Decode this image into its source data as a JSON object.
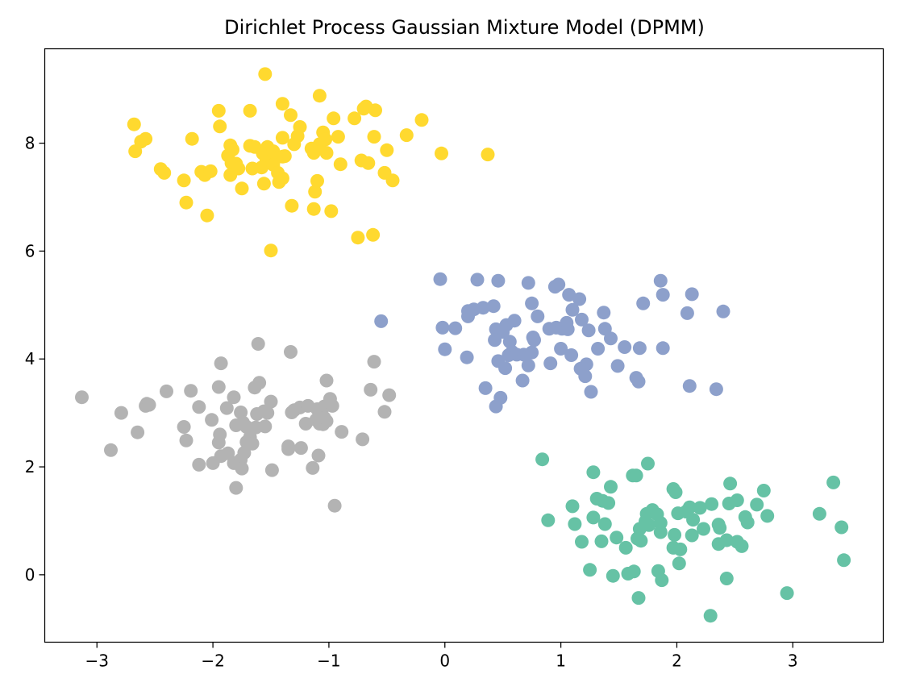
{
  "chart_data": {
    "type": "scatter",
    "title": "Dirichlet Process Gaussian Mixture Model (DPMM)",
    "xlabel": "",
    "ylabel": "",
    "xlim": [
      -3.45,
      3.78
    ],
    "ylim": [
      -1.25,
      9.75
    ],
    "xticks": [
      -3,
      -2,
      -1,
      0,
      1,
      2,
      3
    ],
    "yticks": [
      0,
      2,
      4,
      6,
      8
    ],
    "grid": false,
    "legend": "none",
    "colors": {
      "cluster_yellow": "#ffd92f",
      "cluster_blue": "#8da0cb",
      "cluster_gray": "#b3b3b3",
      "cluster_green": "#66c2a5"
    },
    "series": [
      {
        "color_key": "cluster_yellow",
        "points": [
          [
            -1.55,
            9.28
          ],
          [
            -2.68,
            8.35
          ],
          [
            -2.62,
            8.03
          ],
          [
            -2.58,
            8.08
          ],
          [
            -2.67,
            7.85
          ],
          [
            -1.95,
            8.6
          ],
          [
            -1.68,
            8.6
          ],
          [
            -1.4,
            8.73
          ],
          [
            -1.33,
            8.52
          ],
          [
            -1.08,
            8.88
          ],
          [
            -0.96,
            8.46
          ],
          [
            -0.78,
            8.46
          ],
          [
            -0.7,
            8.64
          ],
          [
            -0.68,
            8.68
          ],
          [
            -0.6,
            8.61
          ],
          [
            -0.2,
            8.43
          ],
          [
            -0.33,
            8.15
          ],
          [
            -1.94,
            8.31
          ],
          [
            -2.18,
            8.08
          ],
          [
            -1.85,
            7.96
          ],
          [
            -1.83,
            7.88
          ],
          [
            -1.87,
            7.77
          ],
          [
            -1.84,
            7.63
          ],
          [
            -1.8,
            7.62
          ],
          [
            -1.68,
            7.95
          ],
          [
            -1.64,
            7.93
          ],
          [
            -1.53,
            7.93
          ],
          [
            -1.57,
            7.81
          ],
          [
            -1.48,
            7.85
          ],
          [
            -1.4,
            7.75
          ],
          [
            -1.38,
            7.76
          ],
          [
            -1.46,
            7.72
          ],
          [
            -1.54,
            7.65
          ],
          [
            -1.58,
            7.55
          ],
          [
            -1.48,
            7.6
          ],
          [
            -1.44,
            7.45
          ],
          [
            -1.4,
            7.35
          ],
          [
            -1.43,
            7.28
          ],
          [
            -1.56,
            7.25
          ],
          [
            -1.78,
            7.53
          ],
          [
            -1.66,
            7.53
          ],
          [
            -1.75,
            7.16
          ],
          [
            -1.85,
            7.41
          ],
          [
            -1.4,
            8.1
          ],
          [
            -1.25,
            8.3
          ],
          [
            -1.27,
            8.13
          ],
          [
            -1.3,
            7.98
          ],
          [
            -1.15,
            7.9
          ],
          [
            -1.13,
            7.82
          ],
          [
            -1.08,
            7.98
          ],
          [
            -1.05,
            8.2
          ],
          [
            -1.03,
            8.07
          ],
          [
            -0.92,
            8.12
          ],
          [
            -1.02,
            7.82
          ],
          [
            -0.9,
            7.61
          ],
          [
            -0.72,
            7.68
          ],
          [
            -0.66,
            7.63
          ],
          [
            -0.61,
            8.12
          ],
          [
            -0.5,
            7.87
          ],
          [
            -0.52,
            7.45
          ],
          [
            -0.45,
            7.31
          ],
          [
            -1.1,
            7.3
          ],
          [
            -1.12,
            7.1
          ],
          [
            -1.32,
            6.84
          ],
          [
            -1.13,
            6.78
          ],
          [
            -0.98,
            6.74
          ],
          [
            -0.75,
            6.25
          ],
          [
            -0.62,
            6.3
          ],
          [
            -2.45,
            7.52
          ],
          [
            -2.42,
            7.45
          ],
          [
            -2.25,
            7.31
          ],
          [
            -2.1,
            7.47
          ],
          [
            -2.07,
            7.41
          ],
          [
            -2.02,
            7.48
          ],
          [
            -2.23,
            6.9
          ],
          [
            -2.05,
            6.66
          ],
          [
            -1.5,
            6.01
          ],
          [
            -0.03,
            7.81
          ],
          [
            0.37,
            7.79
          ]
        ]
      },
      {
        "color_key": "cluster_blue",
        "points": [
          [
            -0.04,
            5.48
          ],
          [
            0.28,
            5.47
          ],
          [
            0.46,
            5.45
          ],
          [
            0.72,
            5.41
          ],
          [
            0.95,
            5.34
          ],
          [
            0.98,
            5.38
          ],
          [
            1.07,
            5.19
          ],
          [
            1.16,
            5.11
          ],
          [
            1.86,
            5.45
          ],
          [
            1.88,
            5.19
          ],
          [
            2.13,
            5.2
          ],
          [
            0.75,
            5.03
          ],
          [
            1.71,
            5.03
          ],
          [
            2.09,
            4.85
          ],
          [
            2.4,
            4.88
          ],
          [
            0.25,
            4.92
          ],
          [
            0.33,
            4.95
          ],
          [
            0.2,
            4.89
          ],
          [
            0.2,
            4.79
          ],
          [
            0.42,
            4.98
          ],
          [
            0.8,
            4.79
          ],
          [
            1.1,
            4.91
          ],
          [
            1.37,
            4.86
          ],
          [
            0.44,
            4.55
          ],
          [
            0.53,
            4.63
          ],
          [
            0.6,
            4.71
          ],
          [
            0.5,
            4.5
          ],
          [
            0.43,
            4.35
          ],
          [
            0.56,
            4.32
          ],
          [
            0.58,
            4.13
          ],
          [
            0.55,
            4.07
          ],
          [
            0.62,
            4.08
          ],
          [
            0.68,
            4.08
          ],
          [
            0.75,
            4.12
          ],
          [
            0.76,
            4.4
          ],
          [
            0.77,
            4.35
          ],
          [
            0.9,
            4.56
          ],
          [
            0.96,
            4.58
          ],
          [
            1.01,
            4.56
          ],
          [
            1.06,
            4.55
          ],
          [
            1.05,
            4.67
          ],
          [
            1.18,
            4.73
          ],
          [
            1.24,
            4.53
          ],
          [
            1.38,
            4.56
          ],
          [
            1.43,
            4.38
          ],
          [
            1.0,
            4.19
          ],
          [
            1.09,
            4.07
          ],
          [
            1.32,
            4.19
          ],
          [
            1.55,
            4.22
          ],
          [
            1.68,
            4.2
          ],
          [
            1.88,
            4.2
          ],
          [
            -0.02,
            4.58
          ],
          [
            0.09,
            4.57
          ],
          [
            0.0,
            4.18
          ],
          [
            0.19,
            4.03
          ],
          [
            0.46,
            3.96
          ],
          [
            0.52,
            3.83
          ],
          [
            0.72,
            3.88
          ],
          [
            0.67,
            3.6
          ],
          [
            0.91,
            3.92
          ],
          [
            1.17,
            3.82
          ],
          [
            1.22,
            3.9
          ],
          [
            1.21,
            3.68
          ],
          [
            1.49,
            3.87
          ],
          [
            1.65,
            3.65
          ],
          [
            1.67,
            3.58
          ],
          [
            1.26,
            3.39
          ],
          [
            2.11,
            3.5
          ],
          [
            2.34,
            3.44
          ],
          [
            0.35,
            3.46
          ],
          [
            0.48,
            3.28
          ],
          [
            0.44,
            3.12
          ],
          [
            -0.55,
            4.7
          ]
        ]
      },
      {
        "color_key": "cluster_gray",
        "points": [
          [
            -1.61,
            4.28
          ],
          [
            -1.33,
            4.13
          ],
          [
            -1.93,
            3.92
          ],
          [
            -0.61,
            3.95
          ],
          [
            -1.6,
            3.56
          ],
          [
            -1.02,
            3.6
          ],
          [
            -1.64,
            3.47
          ],
          [
            -1.95,
            3.48
          ],
          [
            -2.4,
            3.4
          ],
          [
            -2.19,
            3.41
          ],
          [
            -0.64,
            3.43
          ],
          [
            -0.48,
            3.33
          ],
          [
            -3.13,
            3.29
          ],
          [
            -2.57,
            3.17
          ],
          [
            -2.58,
            3.13
          ],
          [
            -2.55,
            3.15
          ],
          [
            -1.82,
            3.29
          ],
          [
            -1.5,
            3.21
          ],
          [
            -1.88,
            3.09
          ],
          [
            -2.12,
            3.11
          ],
          [
            -1.76,
            3.01
          ],
          [
            -1.62,
            2.98
          ],
          [
            -1.53,
            3.0
          ],
          [
            -1.56,
            3.03
          ],
          [
            -1.3,
            3.05
          ],
          [
            -1.25,
            3.1
          ],
          [
            -1.18,
            3.13
          ],
          [
            -1.1,
            3.07
          ],
          [
            -1.04,
            3.12
          ],
          [
            -0.99,
            3.26
          ],
          [
            -0.97,
            3.13
          ],
          [
            -1.32,
            3.01
          ],
          [
            -1.08,
            2.98
          ],
          [
            -1.11,
            2.87
          ],
          [
            -1.08,
            2.8
          ],
          [
            -1.05,
            2.79
          ],
          [
            -1.02,
            2.85
          ],
          [
            -1.04,
            2.91
          ],
          [
            -1.2,
            2.8
          ],
          [
            -0.52,
            3.02
          ],
          [
            -2.79,
            3.0
          ],
          [
            -2.25,
            2.74
          ],
          [
            -2.01,
            2.87
          ],
          [
            -1.8,
            2.77
          ],
          [
            -1.74,
            2.82
          ],
          [
            -1.71,
            2.74
          ],
          [
            -1.63,
            2.73
          ],
          [
            -1.55,
            2.75
          ],
          [
            -1.94,
            2.6
          ],
          [
            -1.95,
            2.45
          ],
          [
            -1.68,
            2.55
          ],
          [
            -1.71,
            2.46
          ],
          [
            -1.66,
            2.43
          ],
          [
            -2.23,
            2.49
          ],
          [
            -2.88,
            2.31
          ],
          [
            -2.65,
            2.64
          ],
          [
            -1.35,
            2.38
          ],
          [
            -1.35,
            2.33
          ],
          [
            -1.24,
            2.35
          ],
          [
            -0.89,
            2.65
          ],
          [
            -0.71,
            2.51
          ],
          [
            -1.93,
            2.2
          ],
          [
            -1.87,
            2.25
          ],
          [
            -1.73,
            2.26
          ],
          [
            -1.82,
            2.07
          ],
          [
            -1.76,
            2.13
          ],
          [
            -2.0,
            2.07
          ],
          [
            -2.12,
            2.04
          ],
          [
            -1.09,
            2.21
          ],
          [
            -1.14,
            1.98
          ],
          [
            -1.75,
            1.97
          ],
          [
            -1.49,
            1.94
          ],
          [
            -1.8,
            1.61
          ],
          [
            -0.95,
            1.28
          ]
        ]
      },
      {
        "color_key": "cluster_green",
        "points": [
          [
            0.84,
            2.14
          ],
          [
            1.75,
            2.06
          ],
          [
            1.28,
            1.9
          ],
          [
            1.62,
            1.84
          ],
          [
            1.65,
            1.84
          ],
          [
            1.43,
            1.63
          ],
          [
            2.46,
            1.69
          ],
          [
            3.35,
            1.71
          ],
          [
            1.97,
            1.59
          ],
          [
            1.99,
            1.53
          ],
          [
            2.75,
            1.56
          ],
          [
            1.31,
            1.41
          ],
          [
            1.36,
            1.37
          ],
          [
            1.41,
            1.33
          ],
          [
            1.1,
            1.27
          ],
          [
            1.74,
            1.13
          ],
          [
            1.79,
            1.2
          ],
          [
            1.83,
            1.12
          ],
          [
            2.01,
            1.14
          ],
          [
            2.11,
            1.25
          ],
          [
            2.08,
            1.17
          ],
          [
            2.2,
            1.24
          ],
          [
            2.3,
            1.31
          ],
          [
            2.45,
            1.32
          ],
          [
            2.52,
            1.38
          ],
          [
            2.69,
            1.3
          ],
          [
            2.59,
            1.07
          ],
          [
            2.61,
            0.97
          ],
          [
            2.78,
            1.09
          ],
          [
            3.23,
            1.13
          ],
          [
            3.42,
            0.88
          ],
          [
            1.28,
            1.06
          ],
          [
            1.12,
            0.94
          ],
          [
            1.38,
            0.94
          ],
          [
            1.73,
            0.99
          ],
          [
            1.76,
            0.92
          ],
          [
            1.86,
            0.96
          ],
          [
            1.86,
            0.79
          ],
          [
            2.14,
            1.02
          ],
          [
            2.23,
            0.85
          ],
          [
            2.36,
            0.93
          ],
          [
            2.37,
            0.87
          ],
          [
            1.68,
            0.85
          ],
          [
            1.98,
            0.74
          ],
          [
            2.13,
            0.73
          ],
          [
            1.66,
            0.67
          ],
          [
            1.69,
            0.63
          ],
          [
            1.48,
            0.69
          ],
          [
            1.35,
            0.62
          ],
          [
            1.18,
            0.61
          ],
          [
            1.56,
            0.5
          ],
          [
            1.97,
            0.5
          ],
          [
            2.03,
            0.47
          ],
          [
            2.36,
            0.57
          ],
          [
            2.43,
            0.64
          ],
          [
            2.52,
            0.61
          ],
          [
            2.56,
            0.53
          ],
          [
            2.02,
            0.21
          ],
          [
            0.89,
            1.01
          ],
          [
            1.25,
            0.09
          ],
          [
            1.45,
            -0.02
          ],
          [
            1.58,
            0.02
          ],
          [
            1.63,
            0.06
          ],
          [
            1.84,
            0.07
          ],
          [
            1.87,
            -0.1
          ],
          [
            2.43,
            -0.07
          ],
          [
            1.67,
            -0.43
          ],
          [
            2.95,
            -0.34
          ],
          [
            2.29,
            -0.76
          ],
          [
            3.44,
            0.27
          ]
        ]
      }
    ]
  }
}
